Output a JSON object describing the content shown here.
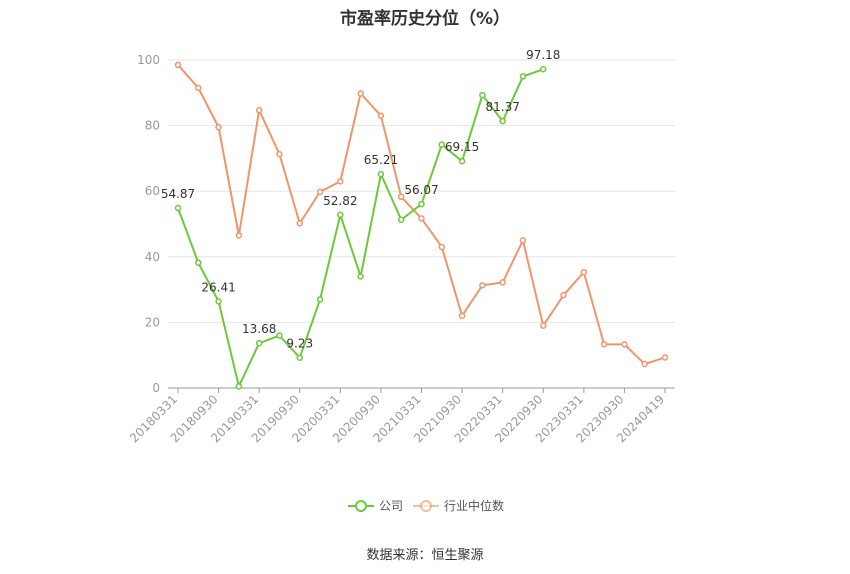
{
  "title": "市盈率历史分位（%）",
  "source": "数据来源：恒生聚源",
  "chart_data": {
    "type": "line",
    "title": "市盈率历史分位（%）",
    "ylim": [
      0,
      100
    ],
    "yticks": [
      0,
      20,
      40,
      60,
      80,
      100
    ],
    "x": [
      "20180331",
      "20180630",
      "20180930",
      "20181231",
      "20190331",
      "20190630",
      "20190930",
      "20191231",
      "20200331",
      "20200630",
      "20200930",
      "20201231",
      "20210331",
      "20210630",
      "20210930",
      "20211231",
      "20220331",
      "20220630",
      "20220930",
      "20221231",
      "20230331",
      "20230630",
      "20230930",
      "20231231",
      "20240419"
    ],
    "xtick_labels": [
      "20180331",
      "20180930",
      "20190331",
      "20190930",
      "20200331",
      "20200930",
      "20210331",
      "20210930",
      "20220331",
      "20220930",
      "20230331",
      "20230930",
      "20240419"
    ],
    "grid": true,
    "legend_position": "bottom",
    "series": [
      {
        "name": "公司",
        "color": "#6cc93a",
        "values": [
          54.87,
          38.2,
          26.41,
          0.5,
          13.68,
          16.0,
          9.23,
          27.0,
          52.82,
          34.0,
          65.21,
          51.3,
          56.07,
          74.2,
          69.15,
          89.3,
          81.37,
          95.0,
          97.18,
          null,
          null,
          null,
          null,
          null,
          null
        ],
        "labels": {
          "0": "54.87",
          "2": "26.41",
          "4": "13.68",
          "6": "9.23",
          "8": "52.82",
          "10": "65.21",
          "12": "56.07",
          "14": "69.15",
          "16": "81.37",
          "18": "97.18"
        }
      },
      {
        "name": "行业中位数",
        "color": "#f0956a",
        "values": [
          98.5,
          91.5,
          79.5,
          46.5,
          84.7,
          71.3,
          50.2,
          59.8,
          63.0,
          89.8,
          83.0,
          58.3,
          51.7,
          43.0,
          22.0,
          31.3,
          32.2,
          45.0,
          19.0,
          28.3,
          35.3,
          13.3,
          13.3,
          7.3,
          9.3
        ]
      }
    ]
  }
}
